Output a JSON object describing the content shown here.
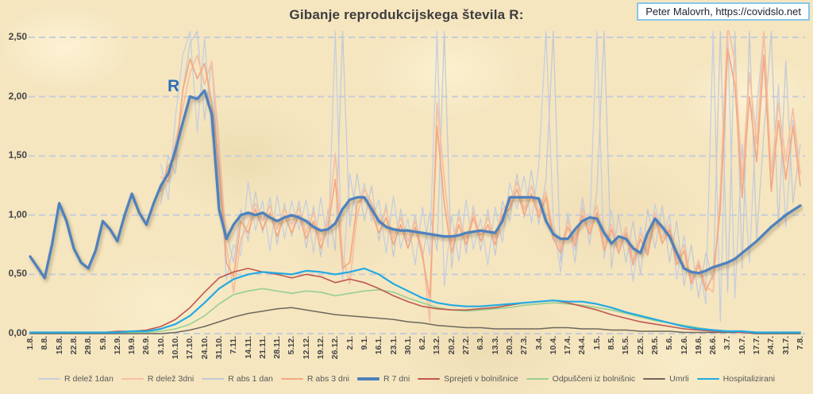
{
  "title": "Gibanje reprodukcijskega števila R:",
  "attribution": "Peter Malovrh, https://covidslo.net",
  "annotation_r": "R",
  "colors": {
    "background": "#f5e6c0",
    "gridline": "#c7cdd8",
    "axis_text": "#454545",
    "legend_text": "#595959",
    "annotation_blue": "#2e6db6",
    "attribution_border": "#86c6e9"
  },
  "chart_data": {
    "type": "line",
    "title": "Gibanje reprodukcijskega števila R:",
    "xlabel": "",
    "ylabel": "",
    "ylim": [
      0,
      2.5
    ],
    "grid": "horizontal-dashed",
    "legend_position": "bottom",
    "y_tick_labels": [
      "0,00",
      "0,50",
      "1,00",
      "1,50",
      "2,00",
      "2,50"
    ],
    "y_tick_values": [
      0,
      0.5,
      1.0,
      1.5,
      2.0,
      2.5
    ],
    "x_tick_labels": [
      "1.8.",
      "8.8.",
      "15.8.",
      "22.8.",
      "29.8.",
      "5.9.",
      "12.9.",
      "19.9.",
      "26.9.",
      "3.10.",
      "10.10.",
      "17.10.",
      "24.10.",
      "31.10.",
      "7.11.",
      "14.11.",
      "21.11.",
      "28.11.",
      "5.12.",
      "12.12.",
      "19.12.",
      "26.12.",
      "2.1.",
      "9.1.",
      "16.1.",
      "23.1.",
      "30.1.",
      "6.2.",
      "13.2.",
      "20.2.",
      "27.2.",
      "6.3.",
      "13.3.",
      "20.3.",
      "27.3.",
      "3.4.",
      "10.4.",
      "17.4.",
      "24.4.",
      "1.5.",
      "8.5.",
      "15.5.",
      "22.5.",
      "29.5.",
      "5.6.",
      "12.6.",
      "19.6.",
      "26.6.",
      "3.7.",
      "10.7.",
      "17.7.",
      "24.7.",
      "31.7.",
      "7.8."
    ],
    "series": [
      {
        "name": "R delež 1dan",
        "color": "#c6cede",
        "values": [
          null,
          null,
          null,
          null,
          null,
          null,
          null,
          null,
          null,
          null,
          null,
          null,
          null,
          null,
          null,
          null,
          null,
          null,
          1.43,
          1.13,
          1.83,
          2.35,
          2.55,
          1.7,
          2.5,
          1.67,
          1.57,
          0.45,
          0.75,
          0.66,
          1.28,
          0.87,
          1.12,
          0.7,
          1.17,
          0.8,
          1.12,
          0.88,
          1.13,
          0.68,
          1.15,
          0.73,
          2.55,
          0.45,
          1.35,
          0.97,
          1.27,
          0.95,
          1.13,
          0.68,
          1.16,
          0.72,
          0.97,
          0.58,
          1.07,
          0.66,
          2.55,
          0.4,
          1.0,
          0.61,
          1.13,
          0.71,
          0.97,
          0.58,
          1.07,
          0.77,
          1.27,
          1.05,
          1.33,
          0.93,
          1.42,
          2.55,
          0.94,
          0.52,
          1.02,
          0.7,
          1.07,
          0.88,
          2.55,
          0.63,
          1.04,
          0.67,
          0.9,
          0.44,
          0.9,
          0.67,
          1.09,
          0.8,
          1.0,
          0.46,
          0.83,
          0.37,
          0.61,
          0.25,
          2.55,
          0.1,
          2.55,
          0.3,
          1.6,
          0.6,
          1.9,
          2.55,
          1.2,
          2.1,
          0.9,
          1.8,
          1.25
        ]
      },
      {
        "name": "R delež 3dni",
        "color": "#f6bfa0",
        "values": [
          null,
          null,
          null,
          null,
          null,
          null,
          null,
          null,
          null,
          null,
          null,
          null,
          null,
          null,
          null,
          null,
          null,
          null,
          1.32,
          1.28,
          1.62,
          1.9,
          2.2,
          2.35,
          2.1,
          2.3,
          1.6,
          0.75,
          0.35,
          0.8,
          0.92,
          1.1,
          0.95,
          1.08,
          0.88,
          1.05,
          0.92,
          1.06,
          0.85,
          1.02,
          0.78,
          0.95,
          1.52,
          0.65,
          0.42,
          1.0,
          1.22,
          1.1,
          0.92,
          1.05,
          0.8,
          0.98,
          0.78,
          0.95,
          0.7,
          0.1,
          1.95,
          1.3,
          0.75,
          0.98,
          0.8,
          1.02,
          0.82,
          0.98,
          0.8,
          1.05,
          1.1,
          1.28,
          1.05,
          1.25,
          1.02,
          1.2,
          0.85,
          0.72,
          0.95,
          0.78,
          1.05,
          0.88,
          1.08,
          0.75,
          0.92,
          0.72,
          0.9,
          0.62,
          0.85,
          0.7,
          1.02,
          0.8,
          0.92,
          0.62,
          0.75,
          0.45,
          0.62,
          0.4,
          0.35,
          1.2,
          2.6,
          2.3,
          1.3,
          2.2,
          1.6,
          2.55,
          1.35,
          1.95,
          1.45,
          1.9,
          1.35
        ]
      },
      {
        "name": "R abs 1 dan",
        "color": "#c4c9d2",
        "values": [
          null,
          null,
          null,
          null,
          null,
          null,
          null,
          null,
          null,
          null,
          null,
          null,
          null,
          null,
          null,
          null,
          null,
          null,
          1.1,
          1.5,
          1.35,
          2.05,
          2.45,
          2.55,
          1.8,
          2.3,
          1.2,
          0.85,
          0.6,
          1.05,
          0.78,
          1.2,
          0.85,
          1.15,
          0.75,
          1.1,
          0.82,
          1.12,
          0.72,
          1.08,
          0.65,
          1.05,
          0.7,
          2.55,
          0.9,
          1.35,
          0.95,
          1.25,
          0.78,
          1.1,
          0.65,
          1.05,
          0.72,
          1.0,
          0.63,
          1.02,
          0.7,
          2.55,
          0.55,
          1.05,
          0.68,
          1.08,
          0.7,
          1.05,
          0.66,
          1.12,
          0.95,
          1.35,
          0.98,
          1.38,
          0.92,
          1.3,
          2.55,
          0.6,
          1.0,
          0.6,
          1.15,
          0.75,
          1.2,
          2.55,
          0.55,
          1.0,
          0.6,
          0.95,
          0.5,
          1.05,
          0.72,
          1.08,
          0.6,
          0.95,
          0.4,
          0.75,
          0.3,
          0.68,
          0.45,
          2.55,
          0.35,
          2.55,
          0.55,
          2.55,
          0.8,
          1.7,
          2.55,
          0.9,
          2.3,
          1.1,
          1.6
        ]
      },
      {
        "name": "R abs 3 dni",
        "color": "#f3a983",
        "values": [
          null,
          null,
          null,
          null,
          null,
          null,
          null,
          null,
          null,
          null,
          null,
          null,
          null,
          null,
          null,
          null,
          null,
          null,
          1.2,
          1.42,
          1.48,
          2.05,
          2.32,
          2.15,
          2.28,
          1.95,
          1.4,
          0.6,
          0.48,
          0.95,
          0.85,
          1.05,
          0.88,
          1.02,
          0.82,
          1.0,
          0.85,
          1.0,
          0.8,
          0.95,
          0.72,
          0.9,
          1.3,
          0.55,
          0.6,
          1.1,
          1.15,
          1.02,
          0.85,
          0.98,
          0.75,
          0.92,
          0.72,
          0.9,
          0.65,
          0.3,
          1.75,
          1.1,
          0.68,
          0.92,
          0.75,
          0.98,
          0.78,
          0.92,
          0.75,
          1.0,
          1.05,
          1.22,
          1.0,
          1.18,
          0.98,
          1.15,
          0.8,
          0.68,
          0.9,
          0.74,
          1.0,
          0.84,
          1.02,
          0.7,
          0.88,
          0.68,
          0.85,
          0.58,
          0.8,
          0.66,
          0.98,
          0.76,
          0.88,
          0.58,
          0.7,
          0.42,
          0.58,
          0.36,
          0.5,
          1.05,
          2.4,
          2.1,
          1.15,
          2.0,
          1.45,
          2.35,
          1.2,
          1.8,
          1.3,
          1.75,
          1.25
        ]
      },
      {
        "name": "R 7 dni",
        "color": "#4f81bd",
        "values": [
          0.65,
          0.56,
          0.47,
          0.75,
          1.1,
          0.95,
          0.72,
          0.6,
          0.55,
          0.7,
          0.95,
          0.88,
          0.78,
          1.0,
          1.18,
          1.02,
          0.92,
          1.1,
          1.25,
          1.35,
          1.55,
          1.78,
          2.0,
          1.98,
          2.05,
          1.85,
          1.05,
          0.8,
          0.92,
          1.0,
          1.02,
          1.0,
          1.02,
          0.98,
          0.95,
          0.98,
          1.0,
          0.98,
          0.95,
          0.9,
          0.87,
          0.88,
          0.93,
          1.05,
          1.13,
          1.15,
          1.15,
          1.05,
          0.95,
          0.9,
          0.88,
          0.87,
          0.87,
          0.86,
          0.85,
          0.84,
          0.83,
          0.82,
          0.82,
          0.83,
          0.85,
          0.86,
          0.87,
          0.86,
          0.85,
          0.95,
          1.15,
          1.15,
          1.15,
          1.15,
          1.14,
          0.95,
          0.84,
          0.8,
          0.8,
          0.88,
          0.95,
          0.98,
          0.97,
          0.85,
          0.76,
          0.82,
          0.8,
          0.72,
          0.68,
          0.85,
          0.97,
          0.9,
          0.82,
          0.68,
          0.55,
          0.52,
          0.51,
          0.53,
          0.56,
          0.58,
          0.6,
          0.63,
          0.68,
          0.73,
          0.78,
          0.84,
          0.9,
          0.95,
          1.0,
          1.04,
          1.08
        ]
      },
      {
        "name": "Sprejeti v bolnišnice",
        "color": "#c0574f",
        "values": [
          0.01,
          0.01,
          0.01,
          0.01,
          0.01,
          0.01,
          0.02,
          0.02,
          0.03,
          0.06,
          0.12,
          0.22,
          0.35,
          0.47,
          0.52,
          0.55,
          0.52,
          0.5,
          0.47,
          0.5,
          0.48,
          0.43,
          0.46,
          0.43,
          0.38,
          0.32,
          0.27,
          0.23,
          0.21,
          0.2,
          0.2,
          0.21,
          0.22,
          0.24,
          0.26,
          0.27,
          0.28,
          0.26,
          0.23,
          0.2,
          0.16,
          0.13,
          0.1,
          0.08,
          0.06,
          0.04,
          0.03,
          0.02,
          0.02,
          0.01,
          0.01,
          0.01,
          0.01,
          0.01
        ]
      },
      {
        "name": "Odpuščeni iz bolnišnic",
        "color": "#98cf90",
        "values": [
          0.01,
          0.01,
          0.01,
          0.01,
          0.01,
          0.01,
          0.01,
          0.01,
          0.01,
          0.02,
          0.04,
          0.08,
          0.15,
          0.25,
          0.33,
          0.36,
          0.38,
          0.36,
          0.34,
          0.36,
          0.35,
          0.32,
          0.34,
          0.36,
          0.37,
          0.35,
          0.3,
          0.26,
          0.22,
          0.2,
          0.19,
          0.2,
          0.21,
          0.22,
          0.24,
          0.25,
          0.26,
          0.25,
          0.24,
          0.22,
          0.2,
          0.17,
          0.14,
          0.11,
          0.09,
          0.07,
          0.05,
          0.03,
          0.02,
          0.02,
          0.01,
          0.01,
          0.01,
          0.01
        ]
      },
      {
        "name": "Umrli",
        "color": "#6e675c",
        "values": [
          0.0,
          0.0,
          0.0,
          0.0,
          0.0,
          0.0,
          0.0,
          0.0,
          0.0,
          0.0,
          0.01,
          0.03,
          0.06,
          0.1,
          0.14,
          0.17,
          0.19,
          0.21,
          0.22,
          0.2,
          0.18,
          0.16,
          0.15,
          0.14,
          0.13,
          0.12,
          0.1,
          0.09,
          0.07,
          0.06,
          0.05,
          0.05,
          0.04,
          0.04,
          0.04,
          0.04,
          0.05,
          0.05,
          0.04,
          0.04,
          0.03,
          0.03,
          0.02,
          0.02,
          0.02,
          0.01,
          0.01,
          0.01,
          0.01,
          0.01,
          0.0,
          0.0,
          0.0,
          0.0
        ]
      },
      {
        "name": "Hospitalizirani",
        "color": "#22aae4",
        "values": [
          0.01,
          0.01,
          0.01,
          0.01,
          0.01,
          0.01,
          0.01,
          0.02,
          0.02,
          0.04,
          0.08,
          0.15,
          0.26,
          0.38,
          0.46,
          0.5,
          0.52,
          0.51,
          0.5,
          0.53,
          0.52,
          0.5,
          0.52,
          0.55,
          0.5,
          0.42,
          0.36,
          0.3,
          0.26,
          0.24,
          0.23,
          0.23,
          0.24,
          0.25,
          0.26,
          0.27,
          0.28,
          0.27,
          0.27,
          0.25,
          0.22,
          0.18,
          0.15,
          0.12,
          0.09,
          0.06,
          0.04,
          0.03,
          0.02,
          0.02,
          0.01,
          0.01,
          0.01,
          0.01
        ]
      }
    ]
  }
}
